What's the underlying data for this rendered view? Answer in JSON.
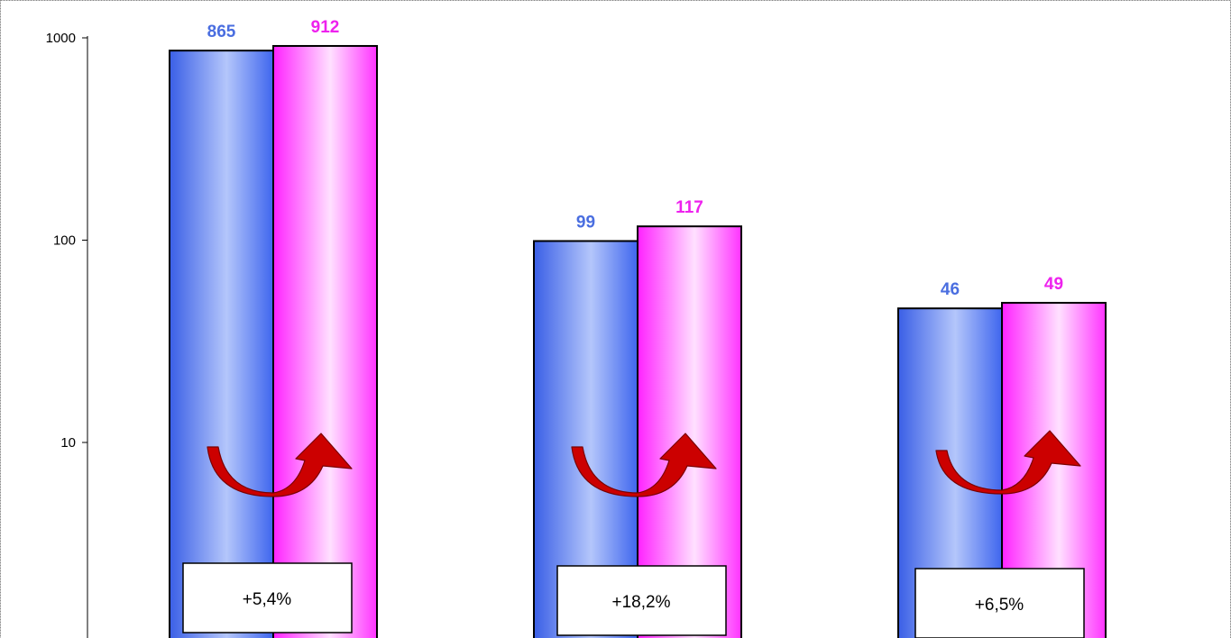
{
  "chart_data": {
    "type": "bar",
    "y_scale": "log",
    "ylim": [
      1,
      1000
    ],
    "y_ticks": [
      {
        "value": 1000,
        "label": "1000"
      },
      {
        "value": 100,
        "label": "100"
      },
      {
        "value": 10,
        "label": "10"
      }
    ],
    "groups": [
      {
        "values": [
          865,
          912
        ],
        "labels": [
          "865",
          "912"
        ],
        "change": "+5,4%"
      },
      {
        "values": [
          99,
          117
        ],
        "labels": [
          "99",
          "117"
        ],
        "change": "+18,2%"
      },
      {
        "values": [
          46,
          49
        ],
        "labels": [
          "46",
          "49"
        ],
        "change": "+6,5%"
      }
    ],
    "colors": {
      "series_1": "#4169e1",
      "series_2": "#ff00ff",
      "label_1": "#4a6ee0",
      "label_2": "#ee22ee",
      "arrow": "#cc0000"
    },
    "grid": false,
    "legend": "none"
  }
}
